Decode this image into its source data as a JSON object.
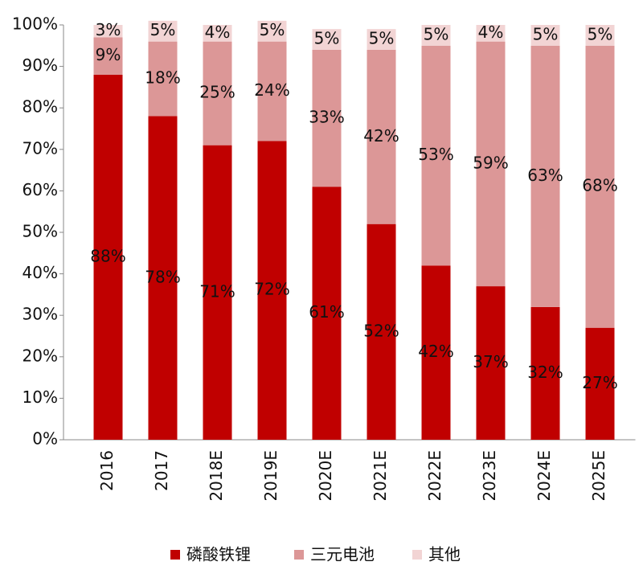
{
  "chart_data": {
    "type": "stacked_bar",
    "categories": [
      "2016",
      "2017",
      "2018E",
      "2019E",
      "2020E",
      "2021E",
      "2022E",
      "2023E",
      "2024E",
      "2025E"
    ],
    "series": [
      {
        "name": "磷酸铁锂",
        "color": "#c00000",
        "values": [
          88,
          78,
          71,
          72,
          61,
          52,
          42,
          37,
          32,
          27
        ],
        "value_labels": [
          "88%",
          "78%",
          "71%",
          "72%",
          "61%",
          "52%",
          "42%",
          "37%",
          "32%",
          "27%"
        ]
      },
      {
        "name": "三元电池",
        "color": "#dc9797",
        "values": [
          9,
          18,
          25,
          24,
          33,
          42,
          53,
          59,
          63,
          68
        ],
        "value_labels": [
          "9%",
          "18%",
          "25%",
          "24%",
          "33%",
          "42%",
          "53%",
          "59%",
          "63%",
          "68%"
        ]
      },
      {
        "name": "其他",
        "color": "#f2d4d4",
        "values": [
          3,
          5,
          4,
          5,
          5,
          5,
          5,
          4,
          5,
          5
        ],
        "value_labels": [
          "3%",
          "5%",
          "4%",
          "5%",
          "5%",
          "5%",
          "5%",
          "4%",
          "5%",
          "5%"
        ]
      }
    ],
    "ylim": [
      0,
      100
    ],
    "yticks": [
      {
        "value": 0,
        "label": "0%"
      },
      {
        "value": 10,
        "label": "10%"
      },
      {
        "value": 20,
        "label": "20%"
      },
      {
        "value": 30,
        "label": "30%"
      },
      {
        "value": 40,
        "label": "40%"
      },
      {
        "value": 50,
        "label": "50%"
      },
      {
        "value": 60,
        "label": "60%"
      },
      {
        "value": 70,
        "label": "70%"
      },
      {
        "value": 80,
        "label": "80%"
      },
      {
        "value": 90,
        "label": "90%"
      },
      {
        "value": 100,
        "label": "100%"
      }
    ],
    "legend": "bottom"
  }
}
